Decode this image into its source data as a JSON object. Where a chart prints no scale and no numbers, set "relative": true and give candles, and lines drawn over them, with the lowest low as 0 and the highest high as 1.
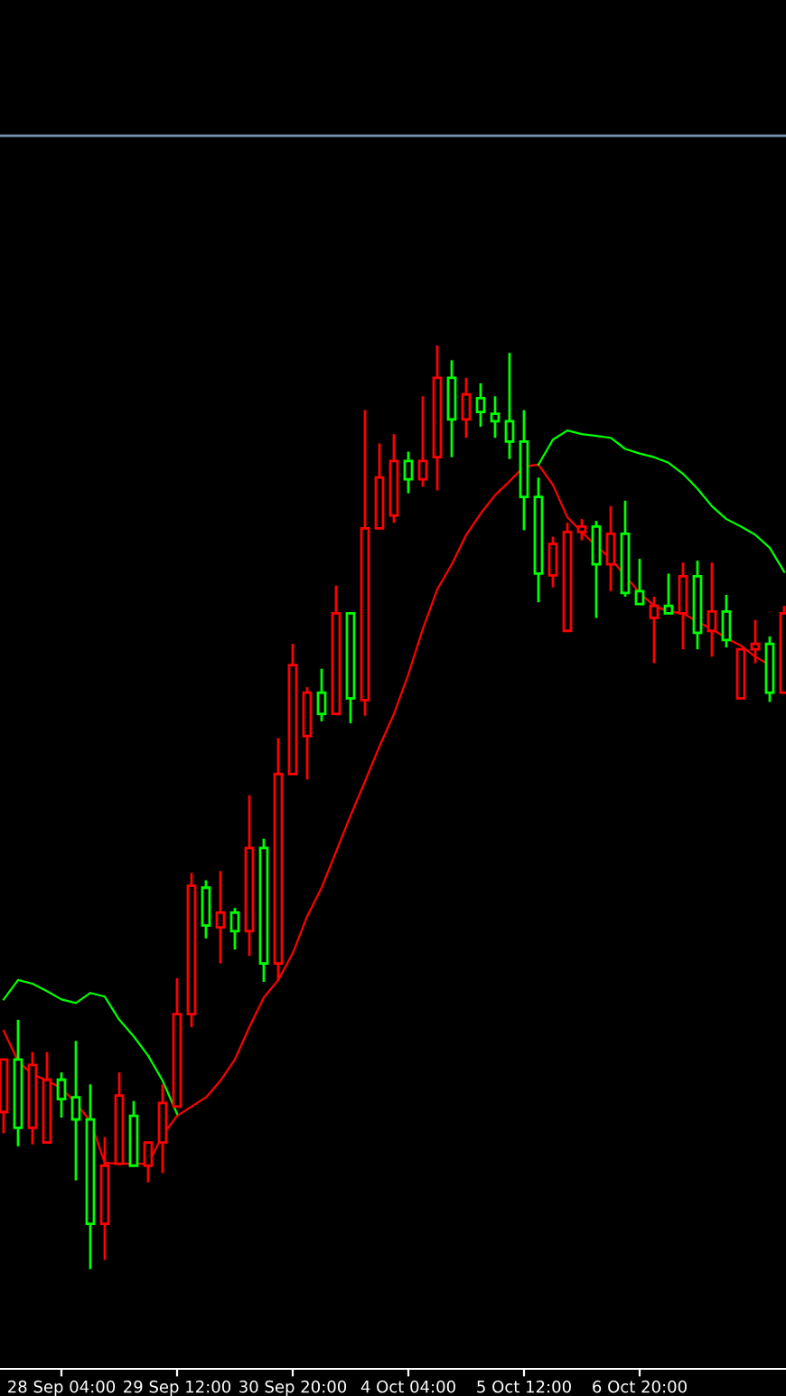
{
  "chart_data": {
    "type": "candlestick",
    "relative": true,
    "grid": false,
    "legend": false,
    "tick_labels": "x",
    "categories": [
      null,
      null,
      null,
      null,
      "28 Sep 04:00",
      null,
      null,
      null,
      null,
      null,
      null,
      null,
      "29 Sep 12:00",
      null,
      null,
      null,
      null,
      null,
      null,
      null,
      "30 Sep 20:00",
      null,
      null,
      null,
      null,
      null,
      null,
      null,
      "4 Oct 04:00",
      null,
      null,
      null,
      null,
      null,
      null,
      null,
      "5 Oct 12:00",
      null,
      null,
      null,
      null,
      null,
      null,
      null,
      "6 Oct 20:00",
      null,
      null,
      null,
      null,
      null,
      null,
      null,
      null,
      null,
      null
    ],
    "ohlc": [
      [
        0.17,
        0.227,
        0.147,
        0.227
      ],
      [
        0.227,
        0.27,
        0.133,
        0.153
      ],
      [
        0.153,
        0.235,
        0.135,
        0.221
      ],
      [
        0.137,
        0.235,
        0.137,
        0.205
      ],
      [
        0.205,
        0.213,
        0.164,
        0.184
      ],
      [
        0.186,
        0.247,
        0.096,
        0.162
      ],
      [
        0.162,
        0.2,
        0,
        0.049
      ],
      [
        0.049,
        0.143,
        0.01,
        0.112
      ],
      [
        0.114,
        0.213,
        0.114,
        0.188
      ],
      [
        0.166,
        0.182,
        0.112,
        0.112
      ],
      [
        0.112,
        0.137,
        0.094,
        0.137
      ],
      [
        0.137,
        0.2,
        0.104,
        0.18
      ],
      [
        0.176,
        0.315,
        0.176,
        0.276
      ],
      [
        0.276,
        0.429,
        0.262,
        0.415
      ],
      [
        0.413,
        0.421,
        0.358,
        0.372
      ],
      [
        0.37,
        0.431,
        0.331,
        0.386
      ],
      [
        0.386,
        0.391,
        0.346,
        0.366
      ],
      [
        0.366,
        0.513,
        0.339,
        0.456
      ],
      [
        0.456,
        0.466,
        0.311,
        0.331
      ],
      [
        0.331,
        0.575,
        0.313,
        0.536
      ],
      [
        0.536,
        0.677,
        0.536,
        0.654
      ],
      [
        0.577,
        0.63,
        0.53,
        0.624
      ],
      [
        0.624,
        0.65,
        0.593,
        0.601
      ],
      [
        0.601,
        0.74,
        0.601,
        0.71
      ],
      [
        0.71,
        0.71,
        0.591,
        0.618
      ],
      [
        0.616,
        0.93,
        0.599,
        0.802
      ],
      [
        0.802,
        0.894,
        0.802,
        0.857
      ],
      [
        0.816,
        0.904,
        0.808,
        0.875
      ],
      [
        0.875,
        0.885,
        0.84,
        0.855
      ],
      [
        0.855,
        0.945,
        0.847,
        0.875
      ],
      [
        0.879,
        1,
        0.843,
        0.965
      ],
      [
        0.965,
        0.984,
        0.879,
        0.92
      ],
      [
        0.92,
        0.965,
        0.9,
        0.947
      ],
      [
        0.943,
        0.959,
        0.912,
        0.928
      ],
      [
        0.926,
        0.945,
        0.9,
        0.918
      ],
      [
        0.918,
        0.992,
        0.877,
        0.896
      ],
      [
        0.896,
        0.93,
        0.8,
        0.836
      ],
      [
        0.836,
        0.857,
        0.722,
        0.753
      ],
      [
        0.751,
        0.793,
        0.738,
        0.785
      ],
      [
        0.691,
        0.808,
        0.691,
        0.798
      ],
      [
        0.798,
        0.812,
        0.789,
        0.804
      ],
      [
        0.804,
        0.81,
        0.705,
        0.763
      ],
      [
        0.763,
        0.826,
        0.734,
        0.796
      ],
      [
        0.796,
        0.832,
        0.728,
        0.732
      ],
      [
        0.734,
        0.769,
        0.72,
        0.72
      ],
      [
        0.705,
        0.728,
        0.656,
        0.718
      ],
      [
        0.718,
        0.753,
        0.71,
        0.71
      ],
      [
        0.71,
        0.765,
        0.671,
        0.75
      ],
      [
        0.75,
        0.767,
        0.671,
        0.689
      ],
      [
        0.691,
        0.765,
        0.663,
        0.712
      ],
      [
        0.712,
        0.73,
        0.673,
        0.681
      ],
      [
        0.618,
        0.671,
        0.618,
        0.671
      ],
      [
        0.671,
        0.703,
        0.656,
        0.677
      ],
      [
        0.677,
        0.685,
        0.614,
        0.624
      ],
      [
        0.624,
        0.718,
        0.624,
        0.71
      ]
    ],
    "colors": [
      "#ff0000",
      "#00ff00",
      "#ff0000",
      "#ff0000",
      "#00ff00",
      "#00ff00",
      "#00ff00",
      "#ff0000",
      "#ff0000",
      "#00ff00",
      "#ff0000",
      "#ff0000",
      "#ff0000",
      "#ff0000",
      "#00ff00",
      "#ff0000",
      "#00ff00",
      "#ff0000",
      "#00ff00",
      "#ff0000",
      "#ff0000",
      "#ff0000",
      "#00ff00",
      "#ff0000",
      "#00ff00",
      "#ff0000",
      "#ff0000",
      "#ff0000",
      "#00ff00",
      "#ff0000",
      "#ff0000",
      "#00ff00",
      "#ff0000",
      "#00ff00",
      "#00ff00",
      "#00ff00",
      "#00ff00",
      "#00ff00",
      "#ff0000",
      "#ff0000",
      "#ff0000",
      "#00ff00",
      "#ff0000",
      "#00ff00",
      "#00ff00",
      "#ff0000",
      "#00ff00",
      "#ff0000",
      "#00ff00",
      "#ff0000",
      "#00ff00",
      "#ff0000",
      "#ff0000",
      "#00ff00",
      "#ff0000"
    ],
    "series": [
      {
        "type": "line",
        "color": "#ff0000",
        "values": [
          0.258,
          0.225,
          0.211,
          0.204,
          0.196,
          0.18,
          0.16,
          0.115,
          0.114,
          0.114,
          0.114,
          0.145,
          0.166,
          0.176,
          0.186,
          0.204,
          0.227,
          0.262,
          0.294,
          0.313,
          0.342,
          0.382,
          0.413,
          0.452,
          0.491,
          0.528,
          0.566,
          0.601,
          0.644,
          0.693,
          0.736,
          0.763,
          0.795,
          0.818,
          0.838,
          0.853,
          0.869,
          0.871,
          0.849,
          0.814,
          0.798,
          0.783,
          0.769,
          0.751,
          0.732,
          0.718,
          0.712,
          0.71,
          0.701,
          0.693,
          0.683,
          0.675,
          0.663,
          0.654,
          null
        ]
      },
      {
        "type": "line",
        "color": "#00ff00",
        "values": [
          0.292,
          0.313,
          0.309,
          0.301,
          0.292,
          0.288,
          0.299,
          0.295,
          0.27,
          0.252,
          0.231,
          0.204,
          0.168,
          null,
          null,
          null,
          null,
          null,
          null,
          null,
          null,
          null,
          null,
          null,
          null,
          null,
          null,
          null,
          null,
          null,
          null,
          null,
          null,
          null,
          null,
          null,
          null,
          0.871,
          0.898,
          0.908,
          0.904,
          0.902,
          0.9,
          0.888,
          0.883,
          0.879,
          0.873,
          0.861,
          0.845,
          0.826,
          0.812,
          0.804,
          0.795,
          0.781,
          0.755
        ]
      }
    ],
    "ref_lines": [
      {
        "axis": "y",
        "value": 1.227,
        "color": "#7b93b5"
      }
    ]
  }
}
